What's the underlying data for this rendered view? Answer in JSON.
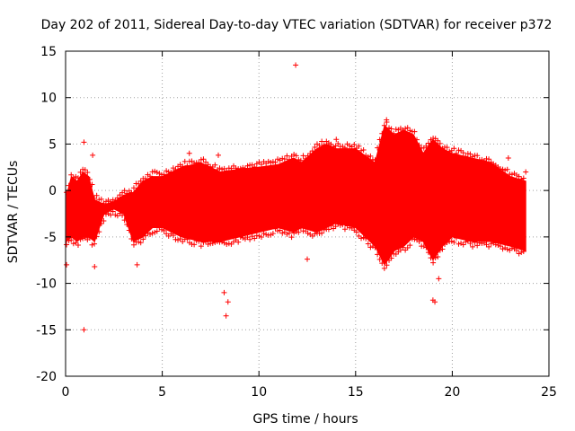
{
  "chart_data": {
    "type": "scatter",
    "title": "Day 202 of 2011, Sidereal Day-to-day VTEC variation (SDTVAR) for receiver p372",
    "xlabel": "GPS time / hours",
    "ylabel": "SDTVAR / TECUs",
    "xlim": [
      0,
      25
    ],
    "ylim": [
      -20,
      15
    ],
    "x_ticks": [
      0,
      5,
      10,
      15,
      20,
      25
    ],
    "y_ticks": [
      -20,
      -15,
      -10,
      -5,
      0,
      5,
      10,
      15
    ],
    "grid": true,
    "series_color": "#ff0000",
    "marker": "plus",
    "band": {
      "x": [
        0.05,
        0.3,
        0.6,
        0.9,
        1.2,
        1.5,
        2.0,
        2.5,
        3.0,
        3.5,
        4.0,
        4.5,
        5.0,
        6.0,
        7.0,
        8.0,
        9.0,
        10.0,
        11.0,
        11.8,
        12.2,
        13.0,
        13.5,
        14.0,
        15.0,
        16.0,
        16.5,
        17.0,
        17.5,
        18.0,
        18.5,
        19.0,
        19.5,
        20.0,
        21.0,
        22.0,
        23.0,
        23.8
      ],
      "upper": [
        -0.5,
        1.5,
        1.0,
        2.0,
        1.5,
        -1.0,
        -1.5,
        -1.2,
        -0.5,
        -0.2,
        1.0,
        1.5,
        1.5,
        2.5,
        3.0,
        2.0,
        2.3,
        2.5,
        2.8,
        3.5,
        3.0,
        4.5,
        5.0,
        4.5,
        4.5,
        3.0,
        7.0,
        6.0,
        6.5,
        6.0,
        4.0,
        5.5,
        4.5,
        4.0,
        3.5,
        3.0,
        1.5,
        1.0
      ],
      "lower": [
        -5.5,
        -5.0,
        -5.5,
        -5.0,
        -5.0,
        -5.5,
        -2.5,
        -2.0,
        -2.5,
        -5.5,
        -5.0,
        -4.0,
        -4.0,
        -5.0,
        -5.5,
        -5.5,
        -5.0,
        -4.5,
        -4.0,
        -4.5,
        -4.0,
        -4.5,
        -4.0,
        -3.5,
        -4.0,
        -6.0,
        -8.0,
        -6.5,
        -6.0,
        -5.0,
        -5.5,
        -7.5,
        -6.0,
        -5.0,
        -5.5,
        -5.5,
        -6.0,
        -6.5
      ]
    },
    "outliers": [
      {
        "x": 11.9,
        "y": 13.5
      },
      {
        "x": 0.95,
        "y": -15.0
      },
      {
        "x": 0.05,
        "y": -8.0
      },
      {
        "x": 1.5,
        "y": -8.2
      },
      {
        "x": 3.7,
        "y": -8.0
      },
      {
        "x": 0.95,
        "y": 5.2
      },
      {
        "x": 1.4,
        "y": 3.8
      },
      {
        "x": 8.3,
        "y": -13.5
      },
      {
        "x": 8.2,
        "y": -11.0
      },
      {
        "x": 7.9,
        "y": 3.8
      },
      {
        "x": 6.4,
        "y": 4.0
      },
      {
        "x": 12.5,
        "y": -7.4
      },
      {
        "x": 19.1,
        "y": -12.0
      },
      {
        "x": 19.0,
        "y": -11.8
      },
      {
        "x": 19.3,
        "y": -9.5
      },
      {
        "x": 16.6,
        "y": 7.6
      },
      {
        "x": 14.0,
        "y": 5.5
      },
      {
        "x": 22.9,
        "y": 3.5
      },
      {
        "x": 23.8,
        "y": 2.0
      },
      {
        "x": 8.4,
        "y": -12.0
      },
      {
        "x": 18.8,
        "y": -6.0
      }
    ]
  }
}
